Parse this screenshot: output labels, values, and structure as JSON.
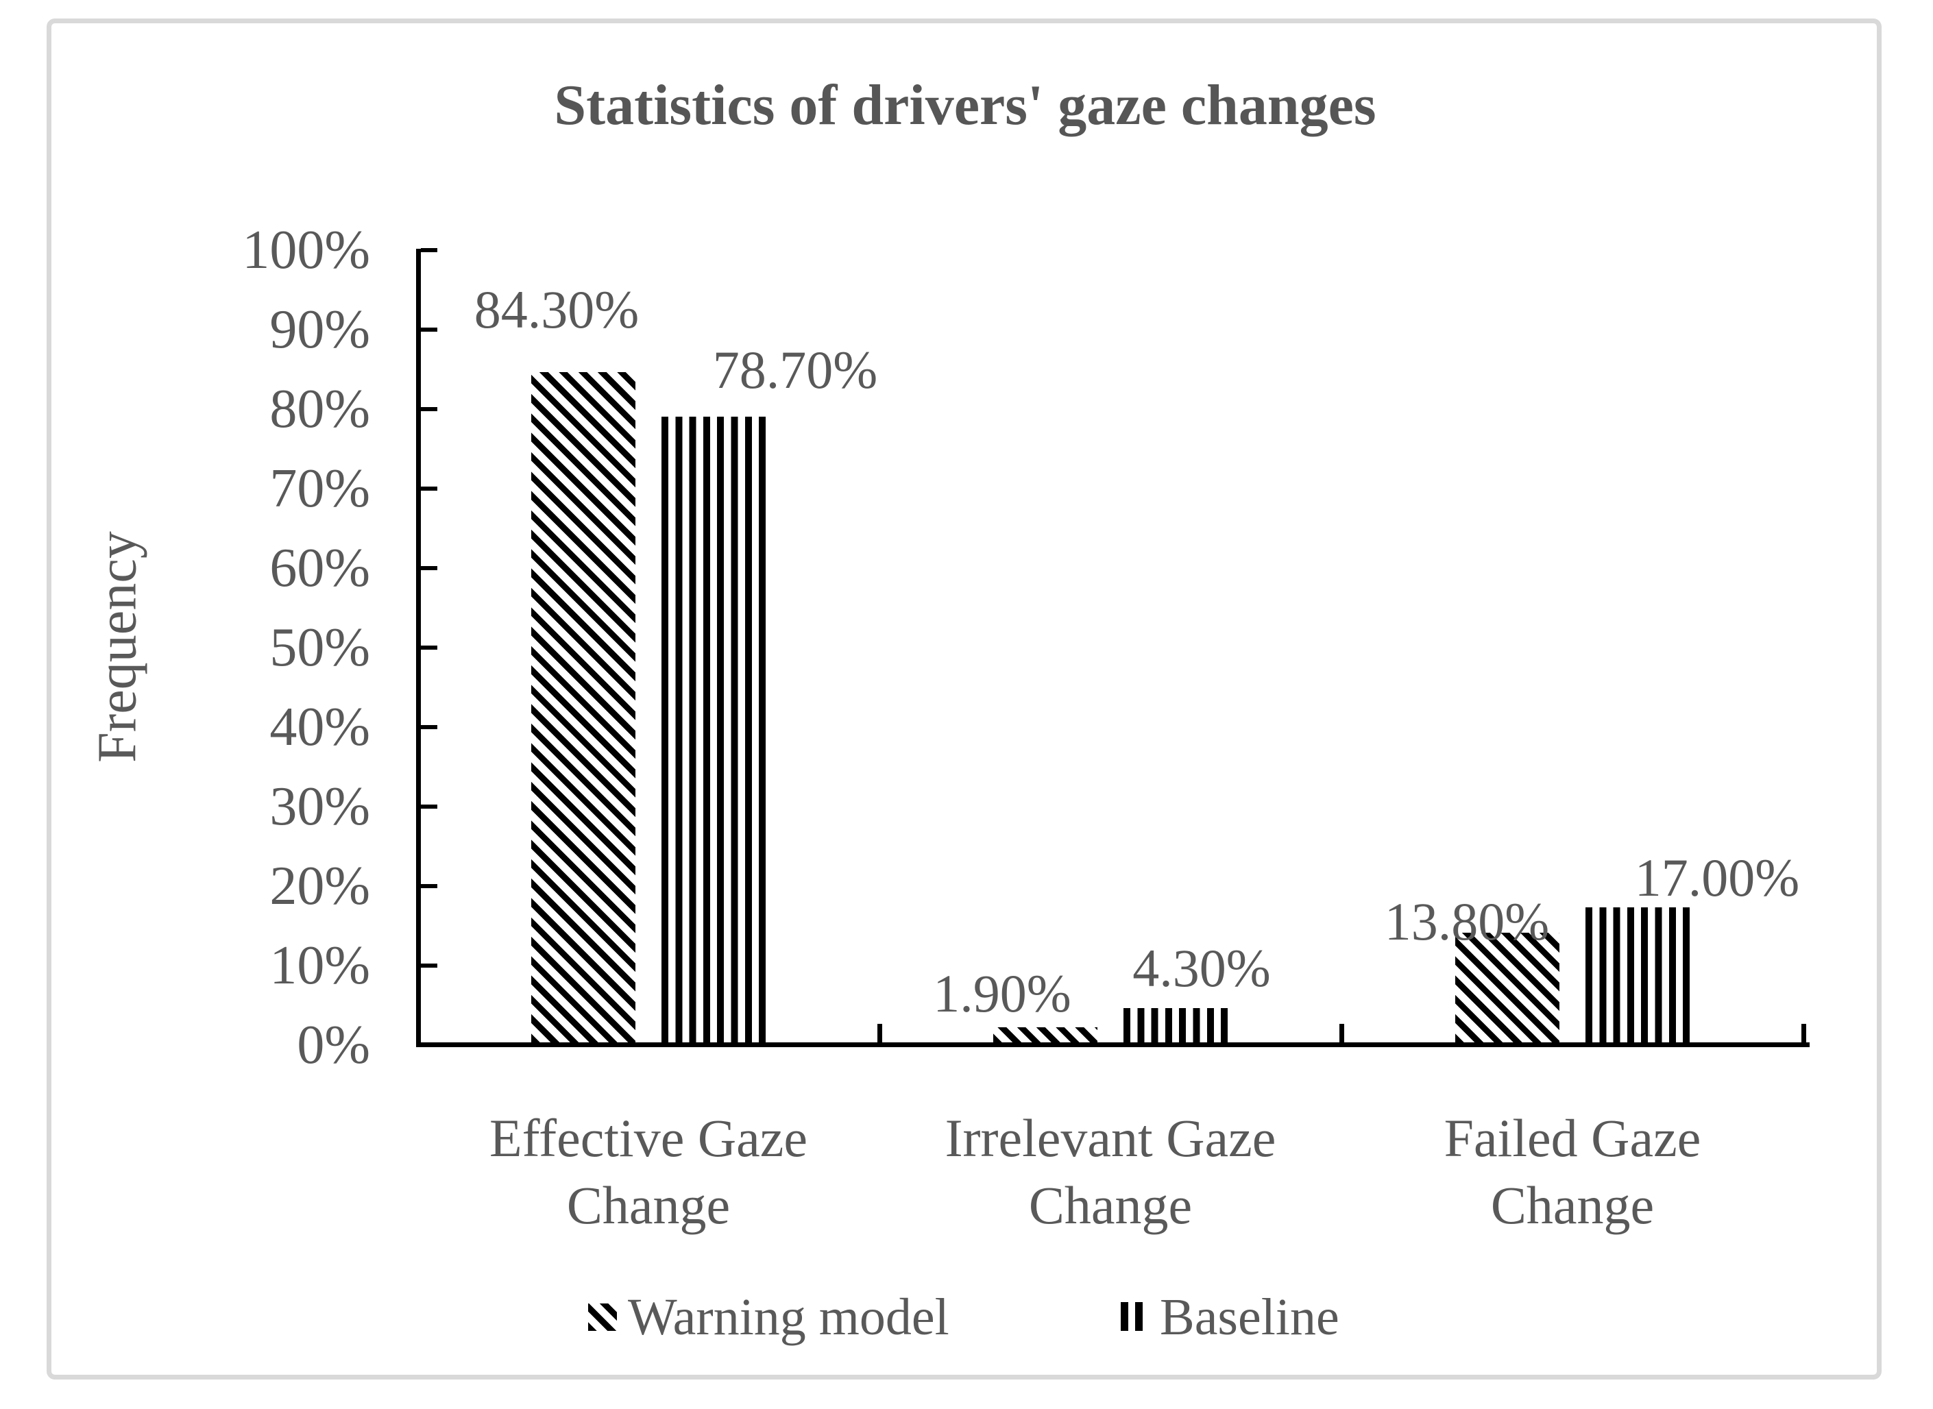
{
  "chart_data": {
    "type": "bar",
    "title": "Statistics of drivers' gaze changes",
    "ylabel": "Frequency",
    "xlabel": "",
    "categories": [
      "Effective Gaze Change",
      "Irrelevant Gaze Change",
      "Failed Gaze Change"
    ],
    "categories_wrapped": [
      [
        "Effective Gaze",
        "Change"
      ],
      [
        "Irrelevant Gaze",
        "Change"
      ],
      [
        "Failed Gaze",
        "Change"
      ]
    ],
    "series": [
      {
        "name": "Warning model",
        "pattern": "diagonal-stripes",
        "values": [
          84.3,
          1.9,
          13.8
        ],
        "data_labels": [
          "84.30%",
          "1.90%",
          "13.80%"
        ]
      },
      {
        "name": "Baseline",
        "pattern": "vertical-stripes",
        "values": [
          78.7,
          4.3,
          17.0
        ],
        "data_labels": [
          "78.70%",
          "4.30%",
          "17.00%"
        ]
      }
    ],
    "ylim": [
      0,
      100
    ],
    "y_tick_step": 10,
    "y_tick_labels": [
      "100%",
      "90%",
      "80%",
      "70%",
      "60%",
      "50%",
      "40%",
      "30%",
      "20%",
      "10%",
      "0%"
    ],
    "grid": false,
    "legend_position": "bottom",
    "bar_color": "#000000",
    "text_color": "#595959",
    "frame_color": "#d9d9d9"
  }
}
